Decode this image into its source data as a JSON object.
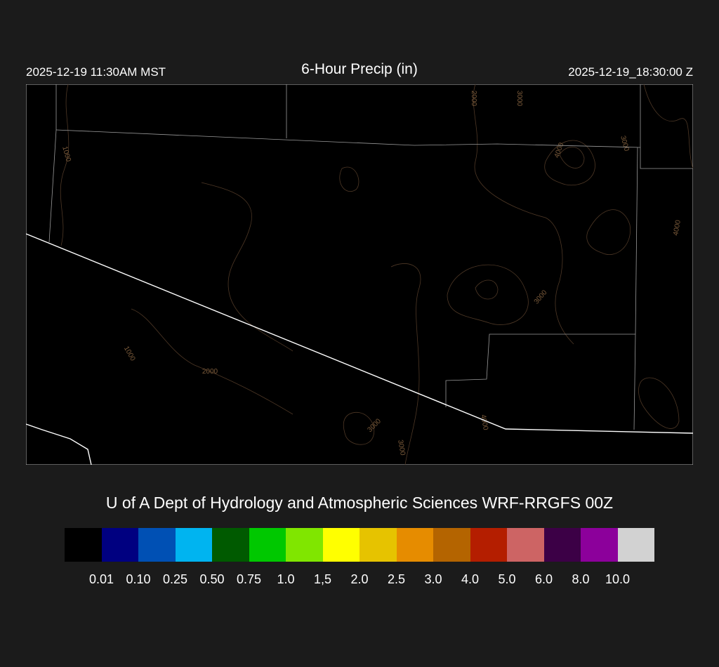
{
  "header": {
    "local_time": "2025-12-19 11:30AM MST",
    "title": "6-Hour Precip (in)",
    "utc_time": "2025-12-19_18:30:00 Z"
  },
  "map": {
    "background": "#000000",
    "contour_color": "#6b4a2e",
    "boundary_color": "#ffffff",
    "county_color": "#9a9a9a",
    "contour_labels": [
      "2000",
      "3000",
      "4000",
      "3000",
      "1000",
      "4000",
      "3000",
      "1000",
      "2000",
      "3000",
      "3000",
      "4000"
    ]
  },
  "credit": "U of A Dept of Hydrology and Atmospheric Sciences WRF-RRGFS 00Z",
  "legend": {
    "colors": [
      "#000000",
      "#000080",
      "#0050b4",
      "#00b4f0",
      "#005a00",
      "#00c800",
      "#80e600",
      "#ffff00",
      "#e6c300",
      "#e68c00",
      "#b46400",
      "#b41e00",
      "#cd6464",
      "#3c0046",
      "#8c009b",
      "#d2d2d2"
    ],
    "labels": [
      "0.01",
      "0.10",
      "0.25",
      "0.50",
      "0.75",
      "1.0",
      "1,5",
      "2.0",
      "2.5",
      "3.0",
      "4.0",
      "5.0",
      "6.0",
      "8.0",
      "10.0"
    ]
  }
}
